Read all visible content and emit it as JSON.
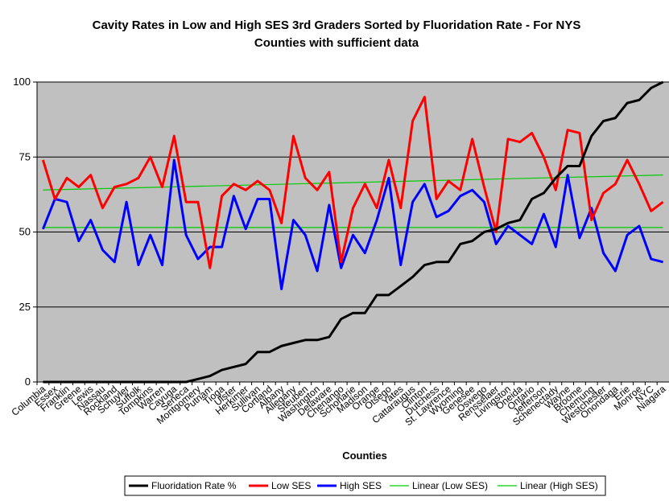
{
  "chart_data": {
    "type": "line",
    "title_lines": [
      "Cavity Rates in Low and High SES 3rd Graders Sorted by Fluoridation Rate - For NYS",
      "Counties with sufficient data"
    ],
    "xlabel": "Counties",
    "ylabel": "",
    "ylim": [
      0,
      100
    ],
    "yticks": [
      0,
      25,
      50,
      75,
      100
    ],
    "grid": true,
    "legend_position": "bottom",
    "categories": [
      "Columbia",
      "Essex",
      "Franklin",
      "Greene",
      "Lewis",
      "Nassau",
      "Rockland",
      "Schuyler",
      "Suffolk",
      "Tompkins",
      "Warren",
      "Cayuga",
      "Seneca",
      "Montgomery",
      "Putnam",
      "Tioga",
      "Ulster",
      "Herkimer",
      "Sullivan",
      "Cortland",
      "Albany",
      "Allegany",
      "Steuben",
      "Washington",
      "Delaware",
      "Chenango",
      "Schoharie",
      "Madison",
      "Orange",
      "Otsego",
      "Yates",
      "Cattaraugus",
      "Clinton",
      "Dutchess",
      "St. Lawrence",
      "Wyoming",
      "Genesee",
      "Oswego",
      "Rensselaer",
      "Livingston",
      "Oneida",
      "Ontario",
      "Jefferson",
      "Schenectady",
      "Wayne",
      "Broome",
      "Chemung",
      "Westchester",
      "Onondaga",
      "Erie",
      "Monroe",
      "NYC",
      "Niagara"
    ],
    "series": [
      {
        "name": "Fluoridation Rate %",
        "color": "#000000",
        "values": [
          0,
          0,
          0,
          0,
          0,
          0,
          0,
          0,
          0,
          0,
          0,
          0,
          0,
          1,
          2,
          4,
          5,
          6,
          10,
          10,
          12,
          13,
          14,
          14,
          15,
          21,
          23,
          23,
          29,
          29,
          32,
          35,
          39,
          40,
          40,
          46,
          47,
          50,
          51,
          53,
          54,
          61,
          63,
          68,
          72,
          72,
          82,
          87,
          88,
          93,
          94,
          98,
          100
        ]
      },
      {
        "name": "Low SES",
        "color": "#ff0000",
        "values": [
          74,
          61,
          68,
          65,
          69,
          58,
          65,
          66,
          68,
          75,
          65,
          82,
          60,
          60,
          38,
          62,
          66,
          64,
          67,
          64,
          53,
          82,
          68,
          64,
          70,
          40,
          58,
          66,
          58,
          74,
          58,
          87,
          95,
          61,
          67,
          64,
          81,
          65,
          50,
          81,
          80,
          83,
          75,
          64,
          84,
          83,
          54,
          63,
          66,
          74,
          66,
          57,
          60
        ]
      },
      {
        "name": "High SES",
        "color": "#0000ff",
        "values": [
          51,
          61,
          60,
          47,
          54,
          44,
          40,
          60,
          39,
          49,
          39,
          74,
          49,
          41,
          45,
          45,
          62,
          51,
          61,
          61,
          31,
          54,
          49,
          37,
          59,
          38,
          49,
          43,
          54,
          68,
          39,
          60,
          66,
          55,
          57,
          62,
          64,
          60,
          46,
          52,
          49,
          46,
          56,
          45,
          69,
          48,
          58,
          43,
          37,
          49,
          52,
          41,
          40
        ]
      },
      {
        "name": "Linear (Low SES)",
        "color": "#00cc00",
        "trend": [
          64,
          69
        ]
      },
      {
        "name": "Linear (High SES)",
        "color": "#00cc00",
        "trend": [
          51.5,
          51.5
        ]
      }
    ]
  }
}
